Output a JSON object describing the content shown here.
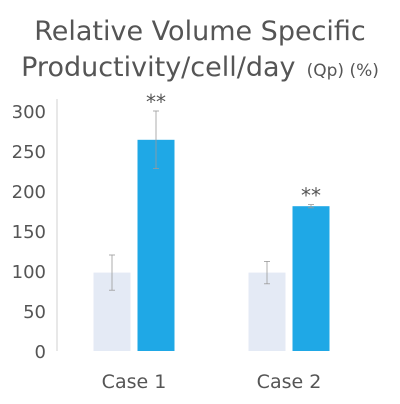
{
  "chart_data": {
    "type": "bar",
    "title_line1": "Relative Volume Specific",
    "title_line2_main": "Productivity/cell/day",
    "title_line2_suffix": "(Qp) (%)",
    "xlabel": "",
    "ylabel": "",
    "ylim": [
      0,
      300
    ],
    "yticks": [
      0,
      50,
      100,
      150,
      200,
      250,
      300
    ],
    "grid": false,
    "legend": "none",
    "categories": [
      "Case 1",
      "Case 2"
    ],
    "series": [
      {
        "color": "#e4eaf5",
        "values": [
          98,
          98
        ],
        "errors": [
          22,
          14
        ]
      },
      {
        "color": "#1fa8e6",
        "values": [
          264,
          181
        ],
        "errors": [
          36,
          2
        ]
      }
    ],
    "annotations": [
      {
        "category": 0,
        "series": 1,
        "text": "**"
      },
      {
        "category": 1,
        "series": 1,
        "text": "**"
      }
    ]
  }
}
